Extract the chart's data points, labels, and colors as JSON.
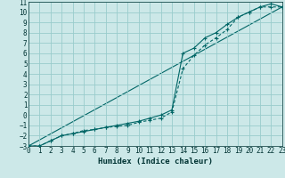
{
  "xlabel": "Humidex (Indice chaleur)",
  "bg_color": "#cce8e8",
  "grid_color": "#99cccc",
  "line_color": "#006666",
  "x_min": 0,
  "x_max": 23,
  "y_min": -3,
  "y_max": 11,
  "line1_x": [
    0,
    1,
    2,
    3,
    4,
    5,
    6,
    7,
    8,
    9,
    10,
    11,
    12,
    13,
    14,
    15,
    16,
    17,
    18,
    19,
    20,
    21,
    22,
    23
  ],
  "line1_y": [
    -3,
    -3,
    -2.5,
    -2,
    -1.8,
    -1.5,
    -1.4,
    -1.2,
    -1.1,
    -1.0,
    -0.7,
    -0.5,
    -0.3,
    0.3,
    4.5,
    5.8,
    6.8,
    7.5,
    8.3,
    9.5,
    10.0,
    10.5,
    10.5,
    10.5
  ],
  "line2_x": [
    0,
    1,
    2,
    3,
    4,
    5,
    6,
    7,
    8,
    9,
    10,
    11,
    12,
    13,
    14,
    15,
    16,
    17,
    18,
    19,
    20,
    21,
    22,
    23
  ],
  "line2_y": [
    -3,
    -3,
    -2.5,
    -2,
    -1.8,
    -1.6,
    -1.4,
    -1.2,
    -1.0,
    -0.8,
    -0.6,
    -0.3,
    0.0,
    0.5,
    6.0,
    6.5,
    7.5,
    8.0,
    8.8,
    9.5,
    10.0,
    10.5,
    10.8,
    10.5
  ],
  "line3_x": [
    0,
    23
  ],
  "line3_y": [
    -3,
    10.5
  ],
  "x_ticks": [
    0,
    1,
    2,
    3,
    4,
    5,
    6,
    7,
    8,
    9,
    10,
    11,
    12,
    13,
    14,
    15,
    16,
    17,
    18,
    19,
    20,
    21,
    22,
    23
  ],
  "y_ticks": [
    -3,
    -2,
    -1,
    0,
    1,
    2,
    3,
    4,
    5,
    6,
    7,
    8,
    9,
    10,
    11
  ],
  "font_color": "#003333",
  "font_size": 5.5,
  "xlabel_fontsize": 6.5
}
